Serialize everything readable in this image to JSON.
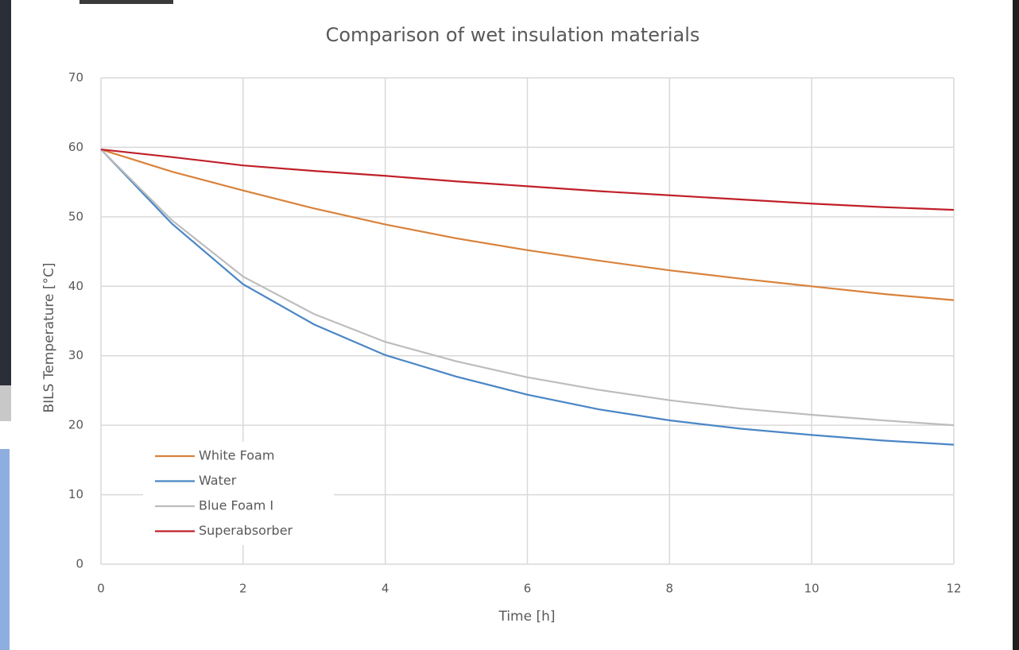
{
  "chart_data": {
    "type": "line",
    "title": "Comparison of wet insulation materials",
    "x_label": "Time [h]",
    "y_label": "BILS Temperature [°C]",
    "x": [
      0,
      1,
      2,
      3,
      4,
      5,
      6,
      7,
      8,
      9,
      10,
      11,
      12
    ],
    "series": [
      {
        "name": "White Foam",
        "color": "#d9823b",
        "values": [
          59.7,
          56.5,
          53.8,
          51.2,
          48.9,
          46.9,
          45.2,
          43.7,
          42.3,
          41.1,
          40.0,
          38.9,
          38.0
        ]
      },
      {
        "name": "Water",
        "color": "#4a86c5",
        "values": [
          59.7,
          49.0,
          40.3,
          34.5,
          30.1,
          27.0,
          24.4,
          22.3,
          20.7,
          19.5,
          18.6,
          17.8,
          17.2
        ]
      },
      {
        "name": "Blue Foam I",
        "color": "#bdbdbd",
        "values": [
          59.7,
          49.5,
          41.4,
          36.0,
          32.0,
          29.2,
          26.9,
          25.1,
          23.6,
          22.4,
          21.5,
          20.7,
          20.0
        ]
      },
      {
        "name": "Superabsorber",
        "color": "#c0202a",
        "values": [
          59.7,
          58.6,
          57.4,
          56.6,
          55.9,
          55.1,
          54.4,
          53.7,
          53.1,
          52.5,
          51.9,
          51.4,
          51.0
        ]
      }
    ],
    "xlim": [
      0,
      12
    ],
    "xticks": [
      0,
      2,
      4,
      6,
      8,
      10,
      12
    ],
    "ylim": [
      0,
      70
    ],
    "yticks": [
      0,
      10,
      20,
      30,
      40,
      50,
      60,
      70
    ],
    "grid": true,
    "legend": "lower-left"
  }
}
